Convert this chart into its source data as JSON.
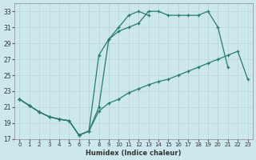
{
  "xlabel": "Humidex (Indice chaleur)",
  "bg_color": "#cce8ec",
  "grid_color": "#b8d8dc",
  "line_color": "#2a7a72",
  "xlim": [
    -0.5,
    23.5
  ],
  "ylim": [
    17,
    34
  ],
  "yticks": [
    17,
    19,
    21,
    23,
    25,
    27,
    29,
    31,
    33
  ],
  "xticks": [
    0,
    1,
    2,
    3,
    4,
    5,
    6,
    7,
    8,
    9,
    10,
    11,
    12,
    13,
    14,
    15,
    16,
    17,
    18,
    19,
    20,
    21,
    22,
    23
  ],
  "line1_x": [
    0,
    1,
    2,
    3,
    4,
    5,
    6,
    7,
    8,
    9,
    10,
    11,
    12,
    13,
    14,
    15,
    16,
    17,
    18,
    19,
    20,
    21,
    22,
    23
  ],
  "line1_y": [
    22.0,
    21.2,
    20.4,
    19.8,
    19.5,
    19.3,
    17.5,
    18.0,
    20.5,
    21.5,
    22.0,
    22.8,
    23.3,
    23.8,
    24.2,
    24.5,
    25.0,
    25.5,
    26.0,
    26.5,
    27.0,
    27.5,
    28.0,
    24.5
  ],
  "line2_x": [
    0,
    1,
    2,
    3,
    4,
    5,
    6,
    7,
    8,
    9,
    10,
    11,
    12,
    13,
    14,
    15,
    16,
    17,
    18,
    19,
    20,
    21
  ],
  "line2_y": [
    22.0,
    21.2,
    20.4,
    19.8,
    19.5,
    19.3,
    17.5,
    18.0,
    21.0,
    29.5,
    30.5,
    31.0,
    31.5,
    33.0,
    33.0,
    32.5,
    32.5,
    32.5,
    32.5,
    33.0,
    31.0,
    26.0
  ],
  "line3_x": [
    0,
    1,
    2,
    3,
    4,
    5,
    6,
    7,
    8,
    9,
    10,
    11,
    12,
    13
  ],
  "line3_y": [
    22.0,
    21.2,
    20.4,
    19.8,
    19.5,
    19.3,
    17.5,
    18.0,
    27.5,
    29.5,
    31.0,
    32.5,
    33.0,
    32.5
  ]
}
